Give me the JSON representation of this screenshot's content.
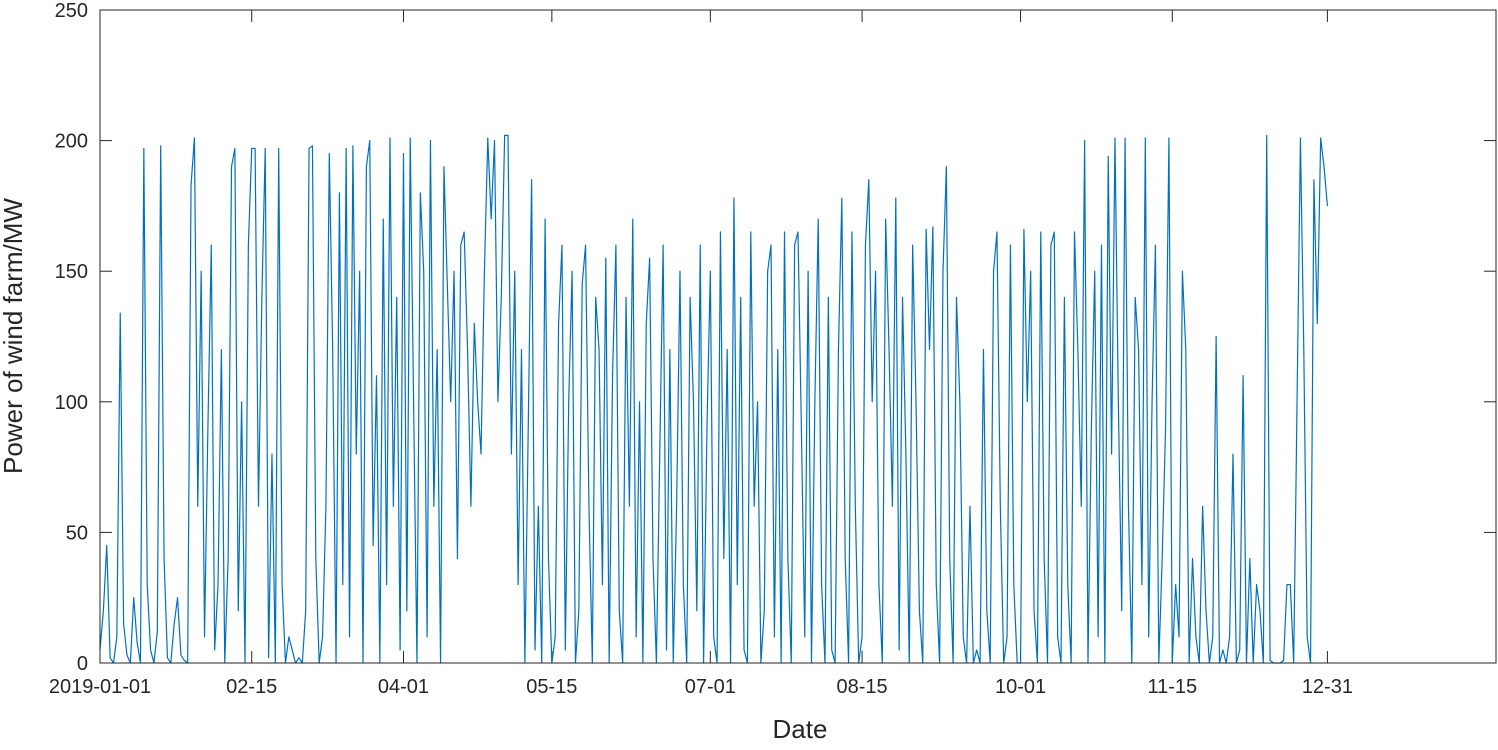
{
  "chart_data": {
    "type": "line",
    "xlabel": "Date",
    "ylabel": "Power of wind farm/MW",
    "color": "#0072BD",
    "grid": false,
    "xlim": [
      "2019-01-01",
      "2020-02-19"
    ],
    "xticks": [
      "2019-01-01",
      {
        "value": "2019-02-15",
        "label": "02-15"
      },
      {
        "value": "2019-04-01",
        "label": "04-01"
      },
      {
        "value": "2019-05-15",
        "label": "05-15"
      },
      {
        "value": "2019-07-01",
        "label": "07-01"
      },
      {
        "value": "2019-08-15",
        "label": "08-15"
      },
      {
        "value": "2019-10-01",
        "label": "10-01"
      },
      {
        "value": "2019-11-15",
        "label": "11-15"
      },
      {
        "value": "2019-12-31",
        "label": "12-31"
      }
    ],
    "ylim": [
      0,
      250
    ],
    "yticks": [
      0,
      50,
      100,
      150,
      200,
      250
    ],
    "x": [
      "2019-01-01",
      "2019-01-02",
      "2019-01-03",
      "2019-01-04",
      "2019-01-05",
      "2019-01-06",
      "2019-01-07",
      "2019-01-08",
      "2019-01-09",
      "2019-01-10",
      "2019-01-11",
      "2019-01-12",
      "2019-01-13",
      "2019-01-14",
      "2019-01-15",
      "2019-01-16",
      "2019-01-17",
      "2019-01-18",
      "2019-01-19",
      "2019-01-20",
      "2019-01-21",
      "2019-01-22",
      "2019-01-23",
      "2019-01-24",
      "2019-01-25",
      "2019-01-26",
      "2019-01-27",
      "2019-01-28",
      "2019-01-29",
      "2019-01-30",
      "2019-01-31",
      "2019-02-01",
      "2019-02-02",
      "2019-02-03",
      "2019-02-04",
      "2019-02-05",
      "2019-02-06",
      "2019-02-07",
      "2019-02-08",
      "2019-02-09",
      "2019-02-10",
      "2019-02-11",
      "2019-02-12",
      "2019-02-13",
      "2019-02-14",
      "2019-02-15",
      "2019-02-16",
      "2019-02-17",
      "2019-02-18",
      "2019-02-19",
      "2019-02-20",
      "2019-02-21",
      "2019-02-22",
      "2019-02-23",
      "2019-02-24",
      "2019-02-25",
      "2019-02-26",
      "2019-02-27",
      "2019-02-28",
      "2019-03-01",
      "2019-03-02",
      "2019-03-03",
      "2019-03-04",
      "2019-03-05",
      "2019-03-06",
      "2019-03-07",
      "2019-03-08",
      "2019-03-09",
      "2019-03-10",
      "2019-03-11",
      "2019-03-12",
      "2019-03-13",
      "2019-03-14",
      "2019-03-15",
      "2019-03-16",
      "2019-03-17",
      "2019-03-18",
      "2019-03-19",
      "2019-03-20",
      "2019-03-21",
      "2019-03-22",
      "2019-03-23",
      "2019-03-24",
      "2019-03-25",
      "2019-03-26",
      "2019-03-27",
      "2019-03-28",
      "2019-03-29",
      "2019-03-30",
      "2019-03-31",
      "2019-04-01",
      "2019-04-02",
      "2019-04-03",
      "2019-04-04",
      "2019-04-05",
      "2019-04-06",
      "2019-04-07",
      "2019-04-08",
      "2019-04-09",
      "2019-04-10",
      "2019-04-11",
      "2019-04-12",
      "2019-04-13",
      "2019-04-14",
      "2019-04-15",
      "2019-04-16",
      "2019-04-17",
      "2019-04-18",
      "2019-04-19",
      "2019-04-20",
      "2019-04-21",
      "2019-04-22",
      "2019-04-23",
      "2019-04-24",
      "2019-04-25",
      "2019-04-26",
      "2019-04-27",
      "2019-04-28",
      "2019-04-29",
      "2019-04-30",
      "2019-05-01",
      "2019-05-02",
      "2019-05-03",
      "2019-05-04",
      "2019-05-05",
      "2019-05-06",
      "2019-05-07",
      "2019-05-08",
      "2019-05-09",
      "2019-05-10",
      "2019-05-11",
      "2019-05-12",
      "2019-05-13",
      "2019-05-14",
      "2019-05-15",
      "2019-05-16",
      "2019-05-17",
      "2019-05-18",
      "2019-05-19",
      "2019-05-20",
      "2019-05-21",
      "2019-05-22",
      "2019-05-23",
      "2019-05-24",
      "2019-05-25",
      "2019-05-26",
      "2019-05-27",
      "2019-05-28",
      "2019-05-29",
      "2019-05-30",
      "2019-05-31",
      "2019-06-01",
      "2019-06-02",
      "2019-06-03",
      "2019-06-04",
      "2019-06-05",
      "2019-06-06",
      "2019-06-07",
      "2019-06-08",
      "2019-06-09",
      "2019-06-10",
      "2019-06-11",
      "2019-06-12",
      "2019-06-13",
      "2019-06-14",
      "2019-06-15",
      "2019-06-16",
      "2019-06-17",
      "2019-06-18",
      "2019-06-19",
      "2019-06-20",
      "2019-06-21",
      "2019-06-22",
      "2019-06-23",
      "2019-06-24",
      "2019-06-25",
      "2019-06-26",
      "2019-06-27",
      "2019-06-28",
      "2019-06-29",
      "2019-06-30",
      "2019-07-01",
      "2019-07-02",
      "2019-07-03",
      "2019-07-04",
      "2019-07-05",
      "2019-07-06",
      "2019-07-07",
      "2019-07-08",
      "2019-07-09",
      "2019-07-10",
      "2019-07-11",
      "2019-07-12",
      "2019-07-13",
      "2019-07-14",
      "2019-07-15",
      "2019-07-16",
      "2019-07-17",
      "2019-07-18",
      "2019-07-19",
      "2019-07-20",
      "2019-07-21",
      "2019-07-22",
      "2019-07-23",
      "2019-07-24",
      "2019-07-25",
      "2019-07-26",
      "2019-07-27",
      "2019-07-28",
      "2019-07-29",
      "2019-07-30",
      "2019-07-31",
      "2019-08-01",
      "2019-08-02",
      "2019-08-03",
      "2019-08-04",
      "2019-08-05",
      "2019-08-06",
      "2019-08-07",
      "2019-08-08",
      "2019-08-09",
      "2019-08-10",
      "2019-08-11",
      "2019-08-12",
      "2019-08-13",
      "2019-08-14",
      "2019-08-15",
      "2019-08-16",
      "2019-08-17",
      "2019-08-18",
      "2019-08-19",
      "2019-08-20",
      "2019-08-21",
      "2019-08-22",
      "2019-08-23",
      "2019-08-24",
      "2019-08-25",
      "2019-08-26",
      "2019-08-27",
      "2019-08-28",
      "2019-08-29",
      "2019-08-30",
      "2019-08-31",
      "2019-09-01",
      "2019-09-02",
      "2019-09-03",
      "2019-09-04",
      "2019-09-05",
      "2019-09-06",
      "2019-09-07",
      "2019-09-08",
      "2019-09-09",
      "2019-09-10",
      "2019-09-11",
      "2019-09-12",
      "2019-09-13",
      "2019-09-14",
      "2019-09-15",
      "2019-09-16",
      "2019-09-17",
      "2019-09-18",
      "2019-09-19",
      "2019-09-20",
      "2019-09-21",
      "2019-09-22",
      "2019-09-23",
      "2019-09-24",
      "2019-09-25",
      "2019-09-26",
      "2019-09-27",
      "2019-09-28",
      "2019-09-29",
      "2019-09-30",
      "2019-10-01",
      "2019-10-02",
      "2019-10-03",
      "2019-10-04",
      "2019-10-05",
      "2019-10-06",
      "2019-10-07",
      "2019-10-08",
      "2019-10-09",
      "2019-10-10",
      "2019-10-11",
      "2019-10-12",
      "2019-10-13",
      "2019-10-14",
      "2019-10-15",
      "2019-10-16",
      "2019-10-17",
      "2019-10-18",
      "2019-10-19",
      "2019-10-20",
      "2019-10-21",
      "2019-10-22",
      "2019-10-23",
      "2019-10-24",
      "2019-10-25",
      "2019-10-26",
      "2019-10-27",
      "2019-10-28",
      "2019-10-29",
      "2019-10-30",
      "2019-10-31",
      "2019-11-01",
      "2019-11-02",
      "2019-11-03",
      "2019-11-04",
      "2019-11-05",
      "2019-11-06",
      "2019-11-07",
      "2019-11-08",
      "2019-11-09",
      "2019-11-10",
      "2019-11-11",
      "2019-11-12",
      "2019-11-13",
      "2019-11-14",
      "2019-11-15",
      "2019-11-16",
      "2019-11-17",
      "2019-11-18",
      "2019-11-19",
      "2019-11-20",
      "2019-11-21",
      "2019-11-22",
      "2019-11-23",
      "2019-11-24",
      "2019-11-25",
      "2019-11-26",
      "2019-11-27",
      "2019-11-28",
      "2019-11-29",
      "2019-11-30",
      "2019-12-01",
      "2019-12-02",
      "2019-12-03",
      "2019-12-04",
      "2019-12-05",
      "2019-12-06",
      "2019-12-07",
      "2019-12-08",
      "2019-12-09",
      "2019-12-10",
      "2019-12-11",
      "2019-12-12",
      "2019-12-13",
      "2019-12-14",
      "2019-12-15",
      "2019-12-16",
      "2019-12-17",
      "2019-12-18",
      "2019-12-19",
      "2019-12-20",
      "2019-12-21",
      "2019-12-22",
      "2019-12-23",
      "2019-12-24",
      "2019-12-25",
      "2019-12-26",
      "2019-12-27",
      "2019-12-28",
      "2019-12-29",
      "2019-12-30",
      "2019-12-31"
    ],
    "values": [
      5,
      20,
      45,
      2,
      0,
      10,
      134,
      15,
      3,
      0,
      25,
      8,
      0,
      197,
      30,
      5,
      0,
      12,
      198,
      40,
      2,
      0,
      15,
      25,
      3,
      1,
      0,
      183,
      201,
      60,
      150,
      10,
      90,
      160,
      5,
      30,
      120,
      0,
      40,
      190,
      197,
      20,
      100,
      0,
      160,
      197,
      197,
      60,
      140,
      197,
      2,
      80,
      0,
      197,
      30,
      0,
      10,
      5,
      0,
      2,
      0,
      20,
      197,
      198,
      40,
      0,
      10,
      60,
      195,
      120,
      0,
      180,
      30,
      197,
      10,
      198,
      80,
      150,
      0,
      190,
      200,
      45,
      110,
      0,
      170,
      30,
      201,
      60,
      140,
      5,
      195,
      20,
      201,
      100,
      0,
      180,
      150,
      10,
      200,
      60,
      120,
      0,
      190,
      145,
      100,
      150,
      40,
      160,
      165,
      120,
      60,
      130,
      100,
      80,
      150,
      201,
      170,
      200,
      100,
      140,
      202,
      202,
      80,
      150,
      30,
      120,
      0,
      90,
      185,
      5,
      60,
      0,
      170,
      40,
      0,
      10,
      130,
      160,
      5,
      100,
      150,
      0,
      20,
      145,
      160,
      60,
      0,
      140,
      120,
      30,
      155,
      0,
      110,
      160,
      20,
      0,
      140,
      60,
      170,
      10,
      100,
      0,
      130,
      155,
      40,
      0,
      80,
      160,
      5,
      120,
      0,
      60,
      150,
      30,
      0,
      140,
      100,
      20,
      160,
      0,
      90,
      150,
      10,
      0,
      165,
      40,
      120,
      0,
      178,
      30,
      140,
      5,
      0,
      165,
      60,
      100,
      0,
      20,
      150,
      160,
      10,
      120,
      0,
      165,
      40,
      0,
      160,
      165,
      90,
      10,
      150,
      0,
      100,
      170,
      30,
      0,
      140,
      5,
      0,
      120,
      178,
      40,
      0,
      165,
      60,
      0,
      10,
      160,
      185,
      100,
      150,
      30,
      0,
      170,
      120,
      60,
      178,
      5,
      140,
      80,
      0,
      160,
      100,
      20,
      0,
      166,
      120,
      167,
      30,
      0,
      150,
      190,
      40,
      0,
      140,
      100,
      10,
      0,
      60,
      0,
      5,
      0,
      120,
      20,
      0,
      150,
      165,
      60,
      0,
      10,
      160,
      30,
      0,
      0,
      166,
      100,
      150,
      20,
      0,
      165,
      40,
      0,
      160,
      165,
      10,
      0,
      140,
      30,
      0,
      165,
      120,
      60,
      200,
      0,
      90,
      150,
      10,
      160,
      0,
      194,
      80,
      201,
      100,
      20,
      201,
      60,
      0,
      140,
      120,
      30,
      201,
      10,
      100,
      160,
      0,
      40,
      90,
      201,
      0,
      30,
      10,
      150,
      120,
      0,
      40,
      10,
      0,
      60,
      20,
      0,
      10,
      125,
      0,
      5,
      0,
      10,
      80,
      0,
      5,
      110,
      0,
      40,
      0,
      30,
      20,
      0,
      202,
      1,
      0,
      0,
      0,
      1,
      30,
      30,
      0,
      100,
      201,
      120,
      10,
      0,
      185,
      130,
      201,
      190,
      175
    ]
  }
}
